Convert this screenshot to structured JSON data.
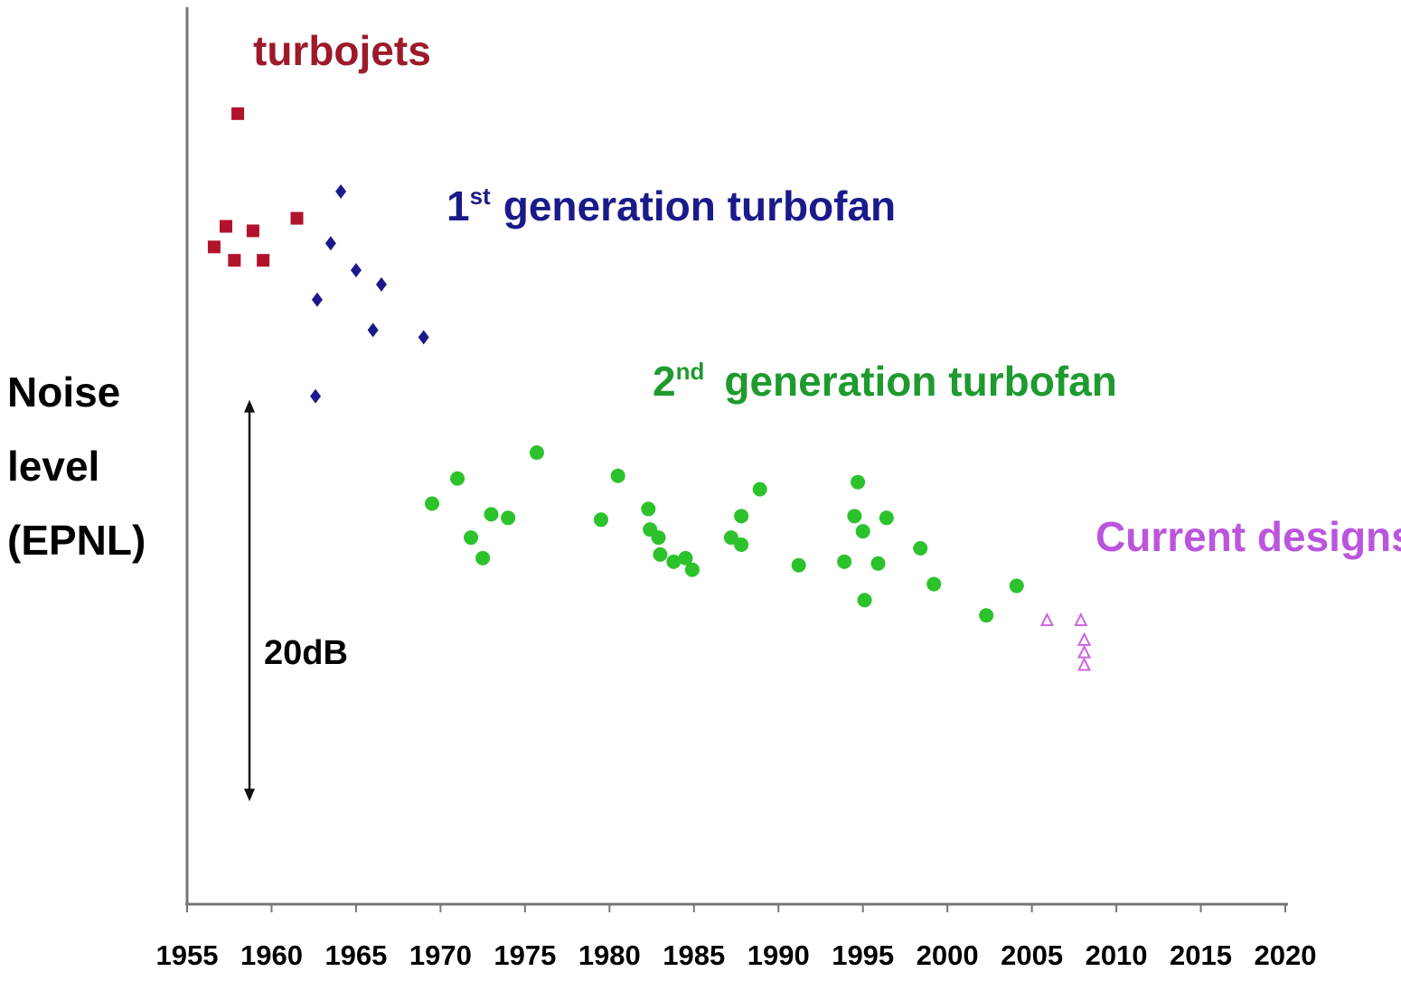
{
  "chart_data": {
    "type": "scatter",
    "ylabel_lines": [
      "Noise",
      "level",
      "(EPNL)"
    ],
    "xlim": [
      1955,
      2020
    ],
    "xticks": [
      1955,
      1960,
      1965,
      1970,
      1975,
      1980,
      1985,
      1990,
      1995,
      2000,
      2005,
      2010,
      2015,
      2020
    ],
    "ylim": [
      0,
      100
    ],
    "grid": false,
    "scale_bar": {
      "label": "20dB",
      "y_from": 56.3,
      "y_to": 11.4
    },
    "series": [
      {
        "name": "turbojets",
        "color": "#b2132c",
        "marker": "square",
        "points": [
          {
            "x": 1958.0,
            "y": 88.3
          },
          {
            "x": 1957.3,
            "y": 75.7
          },
          {
            "x": 1958.9,
            "y": 75.2
          },
          {
            "x": 1961.5,
            "y": 76.6
          },
          {
            "x": 1956.6,
            "y": 73.4
          },
          {
            "x": 1957.8,
            "y": 71.9
          },
          {
            "x": 1959.5,
            "y": 71.9
          }
        ]
      },
      {
        "name": "1st generation turbofan",
        "name_main": "generation turbofan",
        "name_ordinal": "1",
        "name_suffix": "st",
        "color": "#1c1a8a",
        "marker": "diamond",
        "points": [
          {
            "x": 1964.1,
            "y": 79.6
          },
          {
            "x": 1963.5,
            "y": 73.8
          },
          {
            "x": 1965.0,
            "y": 70.8
          },
          {
            "x": 1966.5,
            "y": 69.2
          },
          {
            "x": 1962.7,
            "y": 67.5
          },
          {
            "x": 1966.0,
            "y": 64.1
          },
          {
            "x": 1969.0,
            "y": 63.3
          },
          {
            "x": 1962.6,
            "y": 56.7
          }
        ]
      },
      {
        "name": "2nd generation turbofan",
        "name_main": "generation turbofan",
        "name_ordinal": "2",
        "name_suffix": "nd",
        "color": "#2cc22c",
        "marker": "circle",
        "points": [
          {
            "x": 1975.7,
            "y": 50.4
          },
          {
            "x": 1971.0,
            "y": 47.5
          },
          {
            "x": 1969.5,
            "y": 44.7
          },
          {
            "x": 1973.0,
            "y": 43.5
          },
          {
            "x": 1974.0,
            "y": 43.1
          },
          {
            "x": 1971.8,
            "y": 40.9
          },
          {
            "x": 1972.5,
            "y": 38.6
          },
          {
            "x": 1980.5,
            "y": 47.8
          },
          {
            "x": 1979.5,
            "y": 42.9
          },
          {
            "x": 1982.3,
            "y": 44.1
          },
          {
            "x": 1982.4,
            "y": 41.8
          },
          {
            "x": 1982.9,
            "y": 40.9
          },
          {
            "x": 1983.0,
            "y": 39.0
          },
          {
            "x": 1983.8,
            "y": 38.2
          },
          {
            "x": 1984.5,
            "y": 38.6
          },
          {
            "x": 1984.9,
            "y": 37.3
          },
          {
            "x": 1988.9,
            "y": 46.3
          },
          {
            "x": 1987.8,
            "y": 43.3
          },
          {
            "x": 1987.2,
            "y": 40.9
          },
          {
            "x": 1987.8,
            "y": 40.1
          },
          {
            "x": 1991.2,
            "y": 37.8
          },
          {
            "x": 1994.7,
            "y": 47.1
          },
          {
            "x": 1994.5,
            "y": 43.3
          },
          {
            "x": 1996.4,
            "y": 43.1
          },
          {
            "x": 1995.0,
            "y": 41.6
          },
          {
            "x": 1998.4,
            "y": 39.7
          },
          {
            "x": 1993.9,
            "y": 38.2
          },
          {
            "x": 1995.9,
            "y": 38.0
          },
          {
            "x": 1999.2,
            "y": 35.7
          },
          {
            "x": 1995.1,
            "y": 33.9
          },
          {
            "x": 2004.1,
            "y": 35.5
          },
          {
            "x": 2002.3,
            "y": 32.2
          }
        ]
      },
      {
        "name": "Current designs",
        "color": "#cc66dd",
        "marker": "triangle-open",
        "points": [
          {
            "x": 2005.9,
            "y": 31.6
          },
          {
            "x": 2007.9,
            "y": 31.6
          },
          {
            "x": 2008.1,
            "y": 29.4
          },
          {
            "x": 2008.1,
            "y": 28.0
          },
          {
            "x": 2008.1,
            "y": 26.6
          }
        ]
      }
    ]
  }
}
